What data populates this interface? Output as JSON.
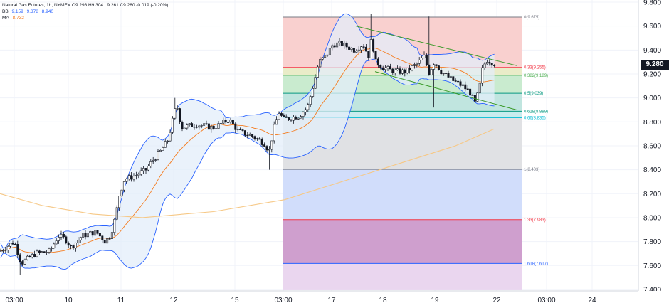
{
  "legend": {
    "title": "Natural Gas Futures, 1h, NYMEX",
    "ohlc": "O9.298 H9.304 L9.261 C9.280 -0.019 (-0.20%)",
    "bb_label": "BB",
    "bb_values": [
      "9.159",
      "9.378",
      "8.940"
    ],
    "ma_label": "MA",
    "ma_value": "8.732"
  },
  "price_tag": "9.280",
  "colors": {
    "up": "#131722",
    "down": "#131722",
    "bb_line": "#2962ff",
    "bb_fill": "#e3edf9",
    "ma_short": "#f57c1f",
    "ma_long": "#f6c886",
    "channel": "#3a9a2a",
    "tag_bg": "#131722",
    "legend_bb": "#2962ff",
    "legend_ma": "#f57c1f"
  },
  "chart_data": {
    "type": "candlestick",
    "title": "Natural Gas Futures, 1h, NYMEX",
    "y_ticks": [
      "9.800",
      "9.600",
      "9.400",
      "9.200",
      "9.000",
      "8.800",
      "8.600",
      "8.400",
      "8.200",
      "8.000",
      "7.800",
      "7.600",
      "7.400"
    ],
    "ylim": [
      7.4,
      9.8
    ],
    "x_ticks": [
      "03:00",
      "10",
      "11",
      "12",
      "15",
      "03:00",
      "17",
      "18",
      "19",
      "22",
      "03:00",
      "24"
    ],
    "last_price": 9.28,
    "path_keypoints": [
      [
        0,
        7.72
      ],
      [
        20,
        7.8
      ],
      [
        30,
        7.62
      ],
      [
        50,
        7.7
      ],
      [
        70,
        7.72
      ],
      [
        82,
        7.85
      ],
      [
        92,
        7.82
      ],
      [
        100,
        7.75
      ],
      [
        115,
        7.85
      ],
      [
        135,
        7.88
      ],
      [
        148,
        7.8
      ],
      [
        155,
        7.85
      ],
      [
        162,
        8.0
      ],
      [
        168,
        8.2
      ],
      [
        175,
        8.32
      ],
      [
        190,
        8.35
      ],
      [
        205,
        8.4
      ],
      [
        215,
        8.48
      ],
      [
        225,
        8.55
      ],
      [
        236,
        8.65
      ],
      [
        242,
        8.8
      ],
      [
        248,
        8.95
      ],
      [
        255,
        8.75
      ],
      [
        275,
        8.78
      ],
      [
        300,
        8.75
      ],
      [
        322,
        8.82
      ],
      [
        335,
        8.72
      ],
      [
        355,
        8.68
      ],
      [
        372,
        8.62
      ],
      [
        378,
        8.55
      ],
      [
        385,
        8.75
      ],
      [
        392,
        8.88
      ],
      [
        398,
        8.82
      ],
      [
        420,
        8.85
      ],
      [
        432,
        8.92
      ],
      [
        440,
        9.1
      ],
      [
        448,
        9.3
      ],
      [
        458,
        9.35
      ],
      [
        468,
        9.45
      ],
      [
        480,
        9.45
      ],
      [
        498,
        9.4
      ],
      [
        510,
        9.45
      ],
      [
        518,
        9.35
      ],
      [
        522,
        9.5
      ],
      [
        528,
        9.3
      ],
      [
        540,
        9.25
      ],
      [
        555,
        9.22
      ],
      [
        570,
        9.22
      ],
      [
        585,
        9.28
      ],
      [
        597,
        9.35
      ],
      [
        602,
        9.2
      ],
      [
        610,
        9.3
      ],
      [
        620,
        9.22
      ],
      [
        635,
        9.15
      ],
      [
        650,
        9.1
      ],
      [
        660,
        9.05
      ],
      [
        668,
        8.95
      ],
      [
        674,
        9.1
      ],
      [
        678,
        9.25
      ],
      [
        684,
        9.32
      ],
      [
        690,
        9.3
      ],
      [
        698,
        9.28
      ]
    ],
    "wicks_high": [
      [
        522,
        9.7
      ],
      [
        602,
        9.68
      ],
      [
        247,
        9.0
      ]
    ],
    "wicks_low": [
      [
        378,
        8.4
      ],
      [
        610,
        8.92
      ],
      [
        668,
        8.88
      ],
      [
        28,
        7.52
      ]
    ],
    "moving_average_long": [
      [
        0,
        8.2
      ],
      [
        60,
        8.1
      ],
      [
        130,
        8.03
      ],
      [
        200,
        8.0
      ],
      [
        300,
        8.05
      ],
      [
        400,
        8.15
      ],
      [
        480,
        8.3
      ],
      [
        560,
        8.45
      ],
      [
        640,
        8.6
      ],
      [
        694,
        8.74
      ]
    ],
    "channel_upper": [
      [
        500,
        9.6
      ],
      [
        726,
        9.27
      ]
    ],
    "channel_lower": [
      [
        527,
        9.22
      ],
      [
        726,
        8.9
      ]
    ],
    "fibonacci": {
      "x_range": [
        397,
        734
      ],
      "levels": [
        {
          "ratio": "0",
          "price": 9.675,
          "label": "0(9.675)",
          "color": "#787b86"
        },
        {
          "ratio": "0.33",
          "price": 9.255,
          "label": "0.33(9.255)",
          "color": "#f23645"
        },
        {
          "ratio": "0.382",
          "price": 9.189,
          "label": "0.382(9.189)",
          "color": "#4caf50"
        },
        {
          "ratio": "0.5",
          "price": 9.039,
          "label": "0.5(9.039)",
          "color": "#089981"
        },
        {
          "ratio": "0.618",
          "price": 8.889,
          "label": "0.618(8.889)",
          "color": "#089981"
        },
        {
          "ratio": "0.66",
          "price": 8.835,
          "label": "0.66(8.835)",
          "color": "#00bcd4"
        },
        {
          "ratio": "1",
          "price": 8.403,
          "label": "1(8.403)",
          "color": "#787b86"
        },
        {
          "ratio": "1.33",
          "price": 7.983,
          "label": "1.33(7.983)",
          "color": "#f23645"
        },
        {
          "ratio": "1.618",
          "price": 7.617,
          "label": "1.618(7.617)",
          "color": "#2962ff"
        }
      ],
      "bands": [
        {
          "from": 9.675,
          "to": 9.255,
          "color": "#f9d0cf"
        },
        {
          "from": 9.255,
          "to": 9.189,
          "color": "#e9ecc8"
        },
        {
          "from": 9.189,
          "to": 9.039,
          "color": "#c9ebcf"
        },
        {
          "from": 9.039,
          "to": 8.889,
          "color": "#c0e5df"
        },
        {
          "from": 8.889,
          "to": 8.835,
          "color": "#c9ecee"
        },
        {
          "from": 8.835,
          "to": 8.403,
          "color": "#e0e1e4"
        },
        {
          "from": 8.403,
          "to": 7.983,
          "color": "#d1ddfb"
        },
        {
          "from": 7.983,
          "to": 7.617,
          "color": "#cf9fce"
        },
        {
          "from": 7.617,
          "to": 7.4,
          "color": "#ead6ef"
        }
      ]
    }
  }
}
